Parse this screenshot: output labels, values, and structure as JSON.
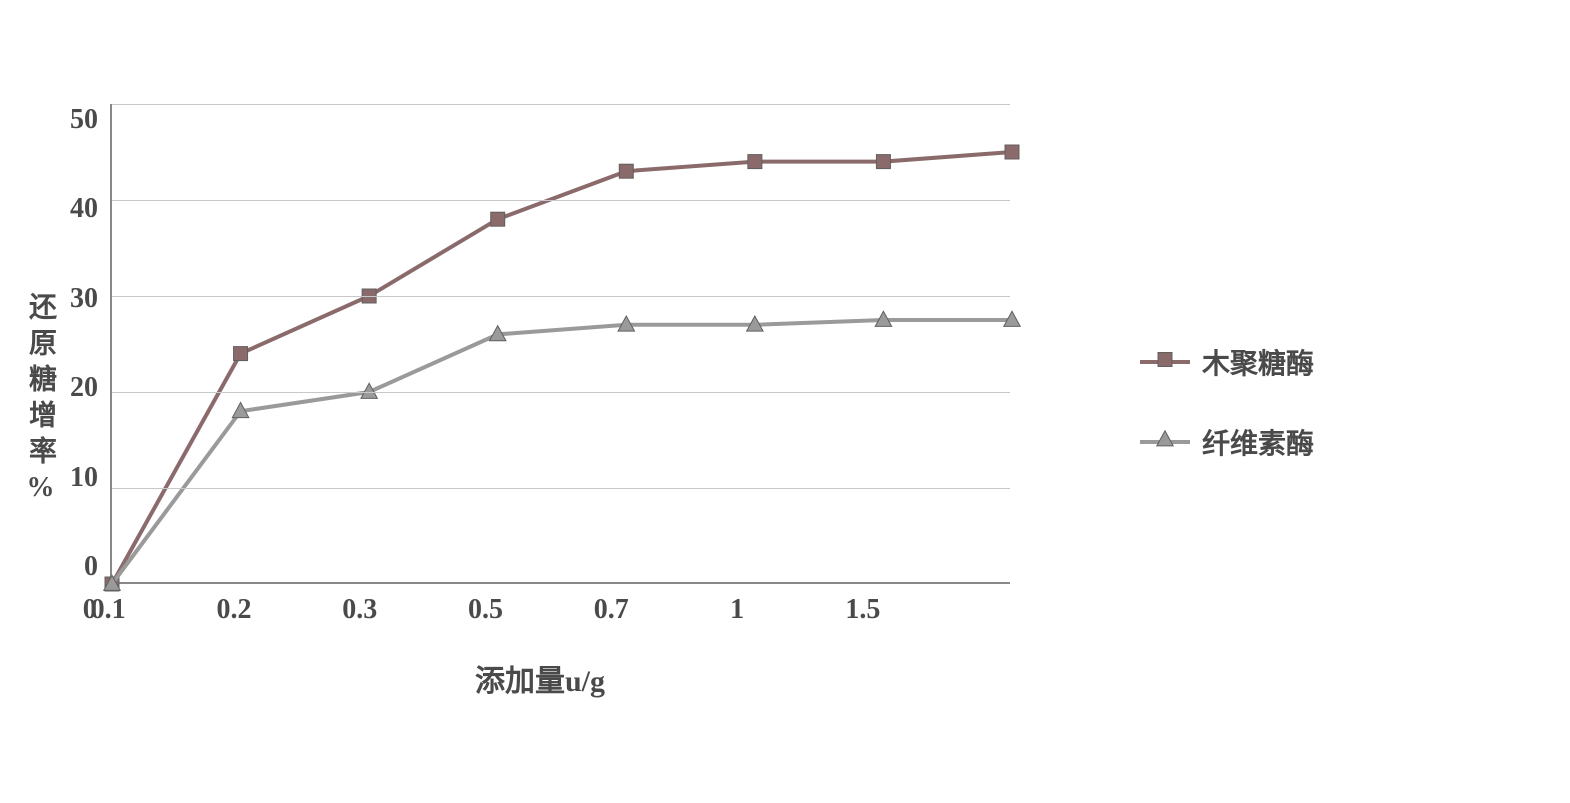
{
  "chart": {
    "type": "line",
    "x_label": "添加量u/g",
    "y_label": "还原糖增率%",
    "x_categories": [
      "0",
      "0.1",
      "0.2",
      "0.3",
      "0.5",
      "0.7",
      "1",
      "1.5"
    ],
    "y_ticks": [
      0,
      10,
      20,
      30,
      40,
      50
    ],
    "ylim": [
      0,
      50
    ],
    "ytick_step": 10,
    "background_color": "#ffffff",
    "grid_color": "#c8c8c8",
    "axis_color": "#888888",
    "text_color": "#4a4a4a",
    "title_fontsize": 30,
    "label_fontsize": 28,
    "tick_fontsize": 28,
    "line_width": 4,
    "marker_size": 14,
    "series": [
      {
        "name": "木聚糖酶",
        "label": "木聚糖酶",
        "marker": "square",
        "color": "#8a6a6a",
        "line_color": "#8a6a6a",
        "values": [
          0,
          24,
          30,
          38,
          43,
          44,
          44,
          45
        ]
      },
      {
        "name": "纤维素酶",
        "label": "纤维素酶",
        "marker": "triangle",
        "color": "#9a9a9a",
        "line_color": "#9a9a9a",
        "values": [
          0,
          18,
          20,
          26,
          27,
          27,
          27.5,
          27.5
        ]
      }
    ]
  }
}
